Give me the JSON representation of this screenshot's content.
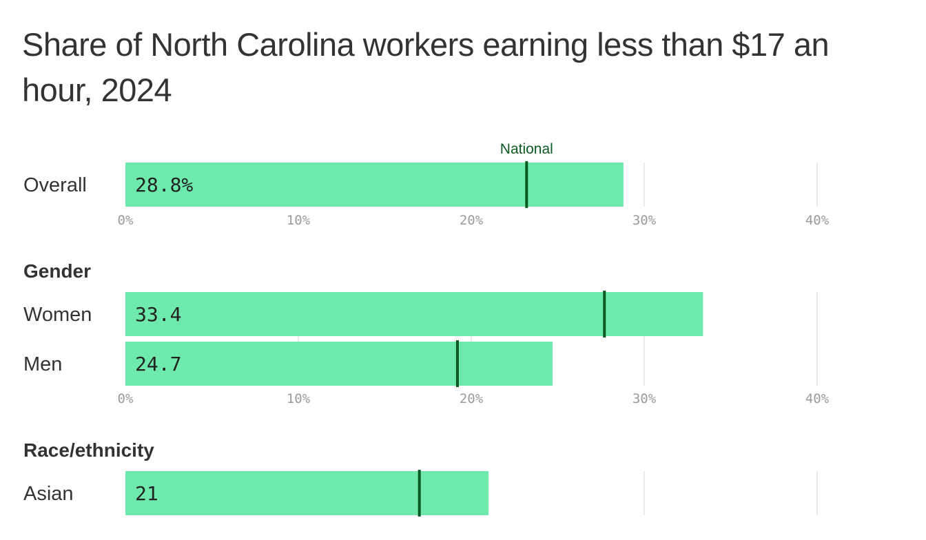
{
  "title": "Share of North Carolina workers earning less than $17 an hour, 2024",
  "colors": {
    "bar": "#6eeaae",
    "marker": "#0b5a22",
    "grid": "#e3e3e3",
    "tick_text": "#9a9a9a",
    "text": "#333333"
  },
  "chart_data": {
    "type": "bar",
    "orientation": "horizontal",
    "title": "Share of North Carolina workers earning less than $17 an hour, 2024",
    "xlim": [
      0,
      40
    ],
    "ticks": [
      "0%",
      "10%",
      "20%",
      "30%",
      "40%"
    ],
    "grid": true,
    "reference_label": "National",
    "groups": [
      {
        "name": "",
        "categories": [
          "Overall"
        ],
        "values": [
          28.8
        ],
        "value_labels": [
          "28.8%"
        ],
        "national": [
          23.2
        ],
        "show_ticks": true
      },
      {
        "name": "Gender",
        "categories": [
          "Women",
          "Men"
        ],
        "values": [
          33.4,
          24.7
        ],
        "value_labels": [
          "33.4",
          "24.7"
        ],
        "national": [
          27.7,
          19.2
        ],
        "show_ticks": true
      },
      {
        "name": "Race/ethnicity",
        "categories": [
          "Asian"
        ],
        "values": [
          21
        ],
        "value_labels": [
          "21"
        ],
        "national": [
          17
        ],
        "show_ticks": false
      }
    ]
  }
}
